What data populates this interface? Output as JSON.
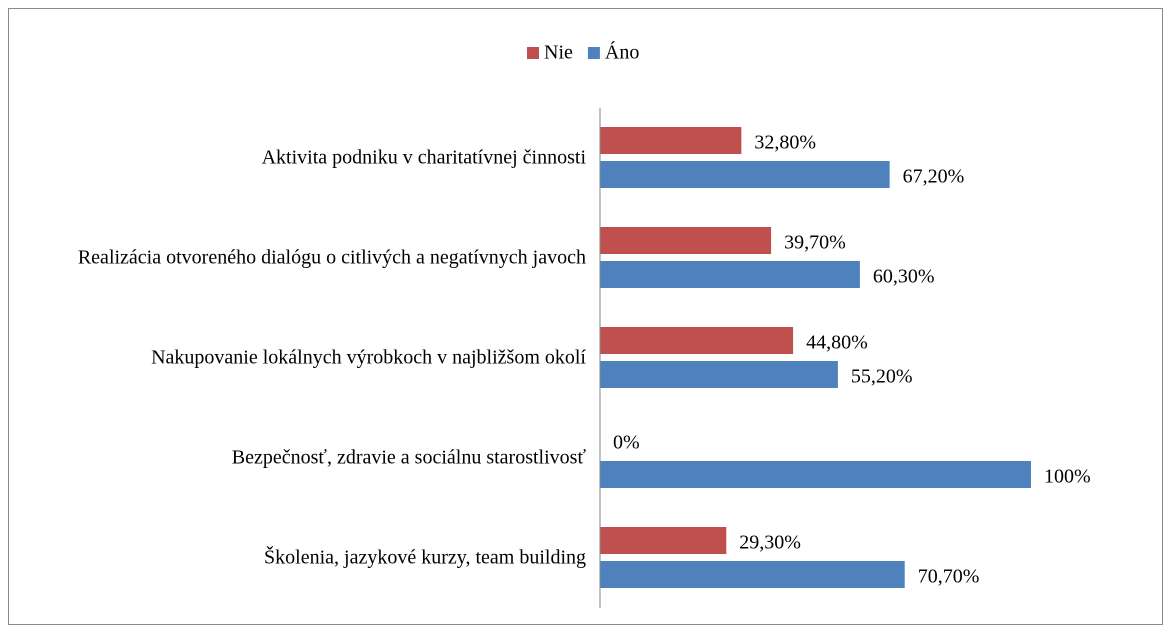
{
  "chart_data": {
    "type": "bar",
    "orientation": "horizontal",
    "categories": [
      "Aktivita podniku v charitatívnej činnosti",
      "Realizácia otvoreného dialógu o citlivých a negatívnych javoch",
      "Nakupovanie lokálnych výrobkoch v najbližšom okolí",
      "Bezpečnosť, zdravie a sociálnu starostlivosť",
      "Školenia, jazykové kurzy, team building"
    ],
    "series": [
      {
        "name": "Nie",
        "color": "#c0504d",
        "values": [
          32.8,
          39.7,
          44.8,
          0,
          29.3
        ],
        "value_labels": [
          "32,80%",
          "39,70%",
          "44,80%",
          "0%",
          "29,30%"
        ]
      },
      {
        "name": "Áno",
        "color": "#4f81bd",
        "values": [
          67.2,
          60.3,
          55.2,
          100,
          70.7
        ],
        "value_labels": [
          "67,20%",
          "60,30%",
          "55,20%",
          "100%",
          "70,70%"
        ]
      }
    ],
    "xlim": [
      0,
      100
    ],
    "legend": "top"
  }
}
